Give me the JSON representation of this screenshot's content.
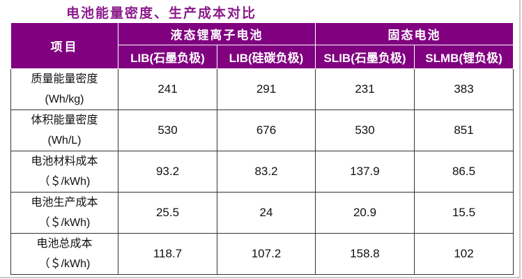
{
  "title": "电池能量密度、生产成本对比",
  "header": {
    "item": "项目",
    "group_liquid": "液态锂离子电池",
    "group_solid": "固态电池",
    "columns": [
      "LIB(石墨负极)",
      "LIB(硅碳负极)",
      "SLIB(石墨负极)",
      "SLMB(锂负极)"
    ]
  },
  "rows": [
    {
      "label": "质量能量密度",
      "unit": "(Wh/kg)",
      "values": [
        "241",
        "291",
        "231",
        "383"
      ]
    },
    {
      "label": "体积能量密度",
      "unit": "(Wh/L)",
      "values": [
        "530",
        "676",
        "530",
        "851"
      ]
    },
    {
      "label": "电池材料成本",
      "unit": "（＄/kWh)",
      "values": [
        "93.2",
        "83.2",
        "137.9",
        "86.5"
      ]
    },
    {
      "label": "电池生产成本",
      "unit": "（＄/kWh)",
      "values": [
        "25.5",
        "24",
        "20.9",
        "15.5"
      ]
    },
    {
      "label": "电池总成本",
      "unit": "（＄/kWh)",
      "values": [
        "118.7",
        "107.2",
        "158.8",
        "102"
      ]
    }
  ],
  "colors": {
    "header_bg": "#800080",
    "title": "#8b1a8b"
  }
}
